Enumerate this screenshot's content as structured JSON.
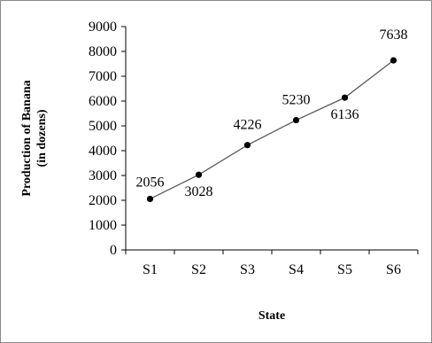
{
  "chart_data": {
    "type": "line",
    "title": "",
    "xlabel": "State",
    "ylabel_line1": "Production of Banana",
    "ylabel_line2": "(in dozens)",
    "categories": [
      "S1",
      "S2",
      "S3",
      "S4",
      "S5",
      "S6"
    ],
    "series": [
      {
        "values": [
          2056,
          3028,
          4226,
          5230,
          6136,
          7638
        ]
      }
    ],
    "data_labels": [
      "2056",
      "3028",
      "4226",
      "5230",
      "6136",
      "7638"
    ],
    "ylim": [
      0,
      9000
    ],
    "yticks": [
      "0",
      "1000",
      "2000",
      "3000",
      "4000",
      "5000",
      "6000",
      "7000",
      "8000",
      "9000"
    ],
    "grid": false,
    "legend": "none",
    "line_color": "#595959",
    "marker_color": "#000000"
  }
}
